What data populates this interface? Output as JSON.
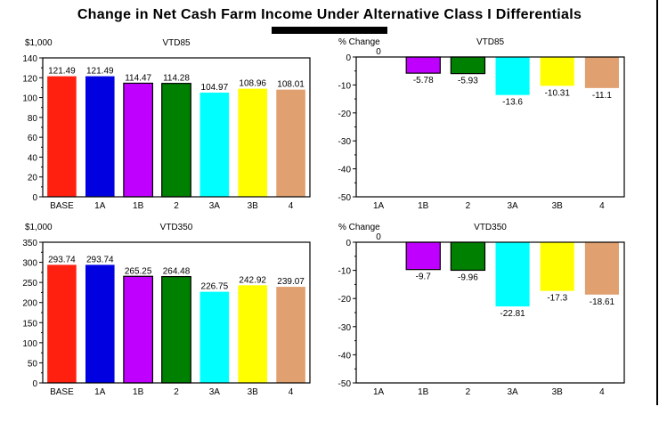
{
  "title": "Change in Net Cash Farm Income Under Alternative Class I Differentials",
  "chart_data": [
    {
      "type": "bar",
      "title": "VTD85",
      "ylabel": "$1,000",
      "categories": [
        "BASE",
        "1A",
        "1B",
        "2",
        "3A",
        "3B",
        "4"
      ],
      "values": [
        121.49,
        121.49,
        114.47,
        114.28,
        104.97,
        108.96,
        108.01
      ],
      "ylim": [
        0,
        140
      ],
      "yticks": [
        0,
        20,
        40,
        60,
        80,
        100,
        120,
        140
      ],
      "colors": [
        "#ff2010",
        "#0000e0",
        "#c000ff",
        "#008000",
        "#00ffff",
        "#ffff00",
        "#e0a070"
      ],
      "grid": false
    },
    {
      "type": "bar",
      "title": "VTD85",
      "ylabel": "% Change",
      "categories": [
        "1A",
        "1B",
        "2",
        "3A",
        "3B",
        "4"
      ],
      "values": [
        0,
        -5.78,
        -5.93,
        -13.6,
        -10.31,
        -11.1
      ],
      "ylim": [
        -50,
        0
      ],
      "yticks": [
        -50,
        -40,
        -30,
        -20,
        -10,
        0
      ],
      "colors": [
        "#0000e0",
        "#c000ff",
        "#008000",
        "#00ffff",
        "#ffff00",
        "#e0a070"
      ],
      "grid": false
    },
    {
      "type": "bar",
      "title": "VTD350",
      "ylabel": "$1,000",
      "categories": [
        "BASE",
        "1A",
        "1B",
        "2",
        "3A",
        "3B",
        "4"
      ],
      "values": [
        293.74,
        293.74,
        265.25,
        264.48,
        226.75,
        242.92,
        239.07
      ],
      "ylim": [
        0,
        350
      ],
      "yticks": [
        0,
        50,
        100,
        150,
        200,
        250,
        300,
        350
      ],
      "colors": [
        "#ff2010",
        "#0000e0",
        "#c000ff",
        "#008000",
        "#00ffff",
        "#ffff00",
        "#e0a070"
      ],
      "grid": false
    },
    {
      "type": "bar",
      "title": "VTD350",
      "ylabel": "% Change",
      "categories": [
        "1A",
        "1B",
        "2",
        "3A",
        "3B",
        "4"
      ],
      "values": [
        0,
        -9.7,
        -9.96,
        -22.81,
        -17.3,
        -18.61
      ],
      "ylim": [
        -50,
        0
      ],
      "yticks": [
        -50,
        -40,
        -30,
        -20,
        -10,
        0
      ],
      "colors": [
        "#0000e0",
        "#c000ff",
        "#008000",
        "#00ffff",
        "#ffff00",
        "#e0a070"
      ],
      "grid": false
    }
  ]
}
